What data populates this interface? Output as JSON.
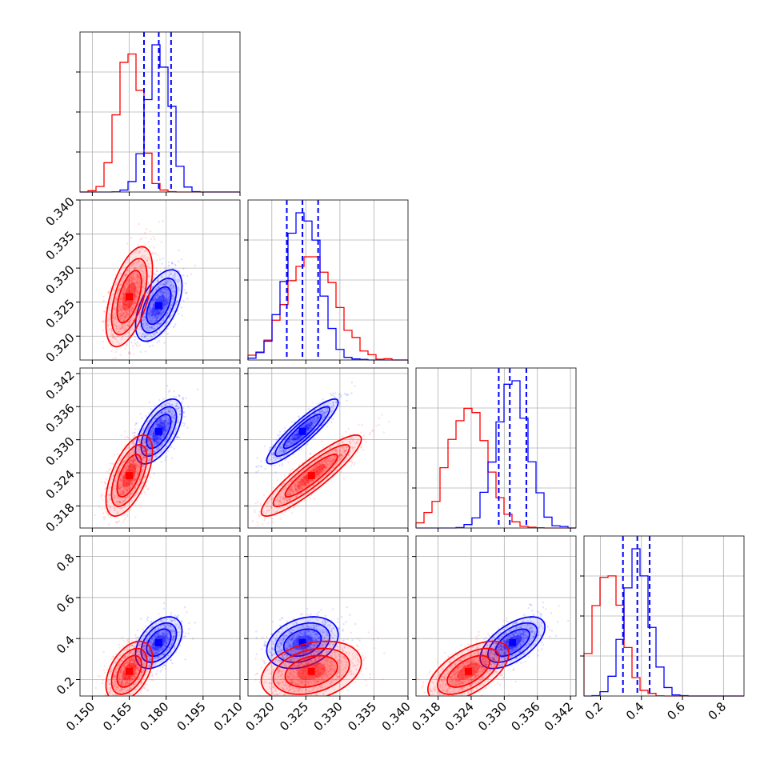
{
  "chart_data": {
    "type": "scatter",
    "subtype": "corner-plot",
    "title": "",
    "n_params": 4,
    "parameter_labels": [
      "",
      "",
      "",
      ""
    ],
    "grid": true,
    "colors": {
      "series_a": "#0000ff",
      "series_b": "#ff0000",
      "grid": "#b0b0b0",
      "frame": "#333333"
    },
    "series": [
      {
        "color": "#0000ff",
        "means": [
          0.177,
          0.3245,
          0.3315,
          0.38
        ],
        "sds": [
          0.0045,
          0.0025,
          0.0028,
          0.06
        ],
        "correlations": {
          "0-1": 0.55,
          "0-2": 0.6,
          "1-2": 0.9,
          "0-3": 0.45,
          "1-3": 0.3,
          "2-3": 0.6
        },
        "quantiles_16_50_84": [
          [
            0.171,
            0.177,
            0.182
          ],
          [
            0.3222,
            0.3245,
            0.3268
          ],
          [
            0.329,
            0.331,
            0.334
          ],
          [
            0.31,
            0.38,
            0.44
          ]
        ]
      },
      {
        "color": "#ff0000",
        "means": [
          0.165,
          0.3258,
          0.3235,
          0.24
        ],
        "sds": [
          0.0045,
          0.0035,
          0.0035,
          0.07
        ],
        "correlations": {
          "0-1": 0.55,
          "0-2": 0.6,
          "1-2": 0.9,
          "0-3": 0.45,
          "1-3": 0.3,
          "2-3": 0.6
        }
      }
    ],
    "axes": [
      {
        "range": [
          0.145,
          0.21
        ],
        "ticks": [
          0.15,
          0.165,
          0.18,
          0.195,
          0.21
        ],
        "tick_labels": [
          "0.150",
          "0.165",
          "0.180",
          "0.195",
          "0.210"
        ]
      },
      {
        "range": [
          0.3165,
          0.34
        ],
        "ticks": [
          0.32,
          0.325,
          0.33,
          0.335,
          0.34
        ],
        "tick_labels": [
          "0.320",
          "0.325",
          "0.330",
          "0.335",
          "0.340"
        ]
      },
      {
        "range": [
          0.314,
          0.343
        ],
        "ticks": [
          0.318,
          0.324,
          0.33,
          0.336,
          0.342
        ],
        "tick_labels": [
          "0.318",
          "0.324",
          "0.330",
          "0.336",
          "0.342"
        ]
      },
      {
        "range": [
          0.12,
          0.9
        ],
        "ticks": [
          0.2,
          0.4,
          0.6,
          0.8
        ],
        "tick_labels": [
          "0.2",
          "0.4",
          "0.6",
          "0.8"
        ]
      }
    ]
  }
}
